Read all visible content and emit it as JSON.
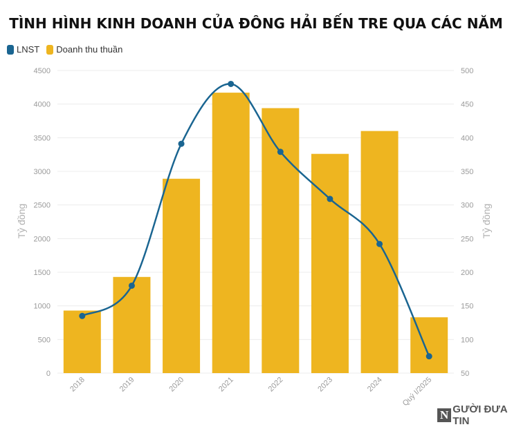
{
  "chart_data": {
    "type": "bar",
    "title": "TÌNH HÌNH KINH DOANH CỦA ĐÔNG HẢI BẾN TRE QUA CÁC NĂM",
    "categories": [
      "2018",
      "2019",
      "2020",
      "2021",
      "2022",
      "2023",
      "2024",
      "Quý I/2025"
    ],
    "series": [
      {
        "name": "Doanh thu thuần",
        "type": "bar",
        "axis": "left",
        "color": "#eeb520",
        "values": [
          930,
          1430,
          2890,
          4170,
          3940,
          3260,
          3600,
          830
        ]
      },
      {
        "name": "LNST",
        "type": "line",
        "axis": "right",
        "color": "#1a6591",
        "values": [
          135,
          180,
          391,
          480,
          379,
          309,
          242,
          75
        ]
      }
    ],
    "y_left": {
      "label": "Tỷ đồng",
      "min": 0,
      "max": 4500,
      "ticks": [
        "0",
        "500",
        "1000",
        "1500",
        "2000",
        "2500",
        "3000",
        "3500",
        "4000",
        "4500"
      ]
    },
    "y_right": {
      "label": "Tỷ đồng",
      "min": 50,
      "max": 500,
      "ticks": [
        "50",
        "100",
        "150",
        "200",
        "250",
        "300",
        "350",
        "400",
        "450",
        "500"
      ]
    },
    "grid": true,
    "legend_position": "top-left"
  },
  "watermark": {
    "mark": "N",
    "text": "GƯỜI ĐƯA TIN"
  }
}
